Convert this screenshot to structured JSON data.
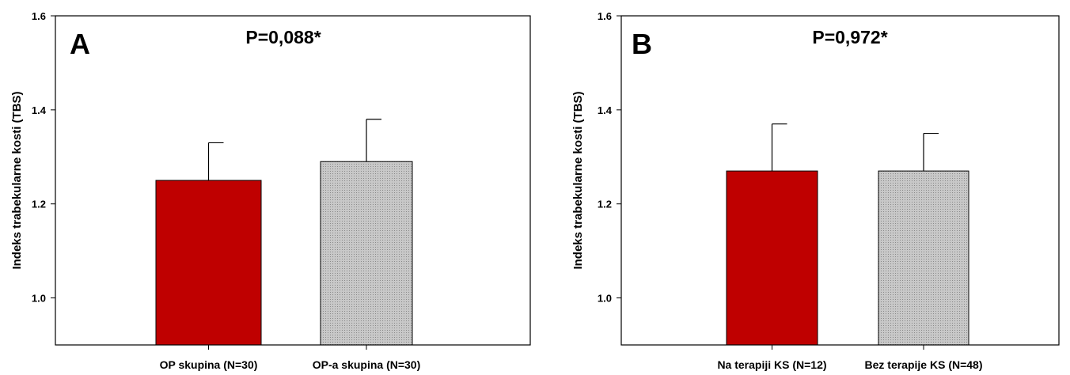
{
  "chart_data": [
    {
      "type": "bar",
      "panel_label": "A",
      "annotation": "P=0,088*",
      "ylabel": "Indeks trabekularne kosti (TBS)",
      "ylim": [
        0.9,
        1.6
      ],
      "yticks": [
        "1.0",
        "1.2",
        "1.4",
        "1.6"
      ],
      "ytick_values": [
        1.0,
        1.2,
        1.4,
        1.6
      ],
      "categories": [
        "OP skupina (N=30)",
        "OP-a skupina (N=30)"
      ],
      "values": [
        1.25,
        1.29
      ],
      "errors": [
        0.08,
        0.09
      ],
      "colors": [
        "#bf0000",
        "#c0c0c0"
      ],
      "grid": false
    },
    {
      "type": "bar",
      "panel_label": "B",
      "annotation": "P=0,972*",
      "ylabel": "Indeks trabekularne kosti (TBS)",
      "ylim": [
        0.9,
        1.6
      ],
      "yticks": [
        "1.0",
        "1.2",
        "1.4",
        "1.6"
      ],
      "ytick_values": [
        1.0,
        1.2,
        1.4,
        1.6
      ],
      "categories": [
        "Na terapiji KS (N=12)",
        "Bez terapije KS (N=48)"
      ],
      "values": [
        1.27,
        1.27
      ],
      "errors": [
        0.1,
        0.08
      ],
      "colors": [
        "#bf0000",
        "#c0c0c0"
      ],
      "grid": false
    }
  ]
}
